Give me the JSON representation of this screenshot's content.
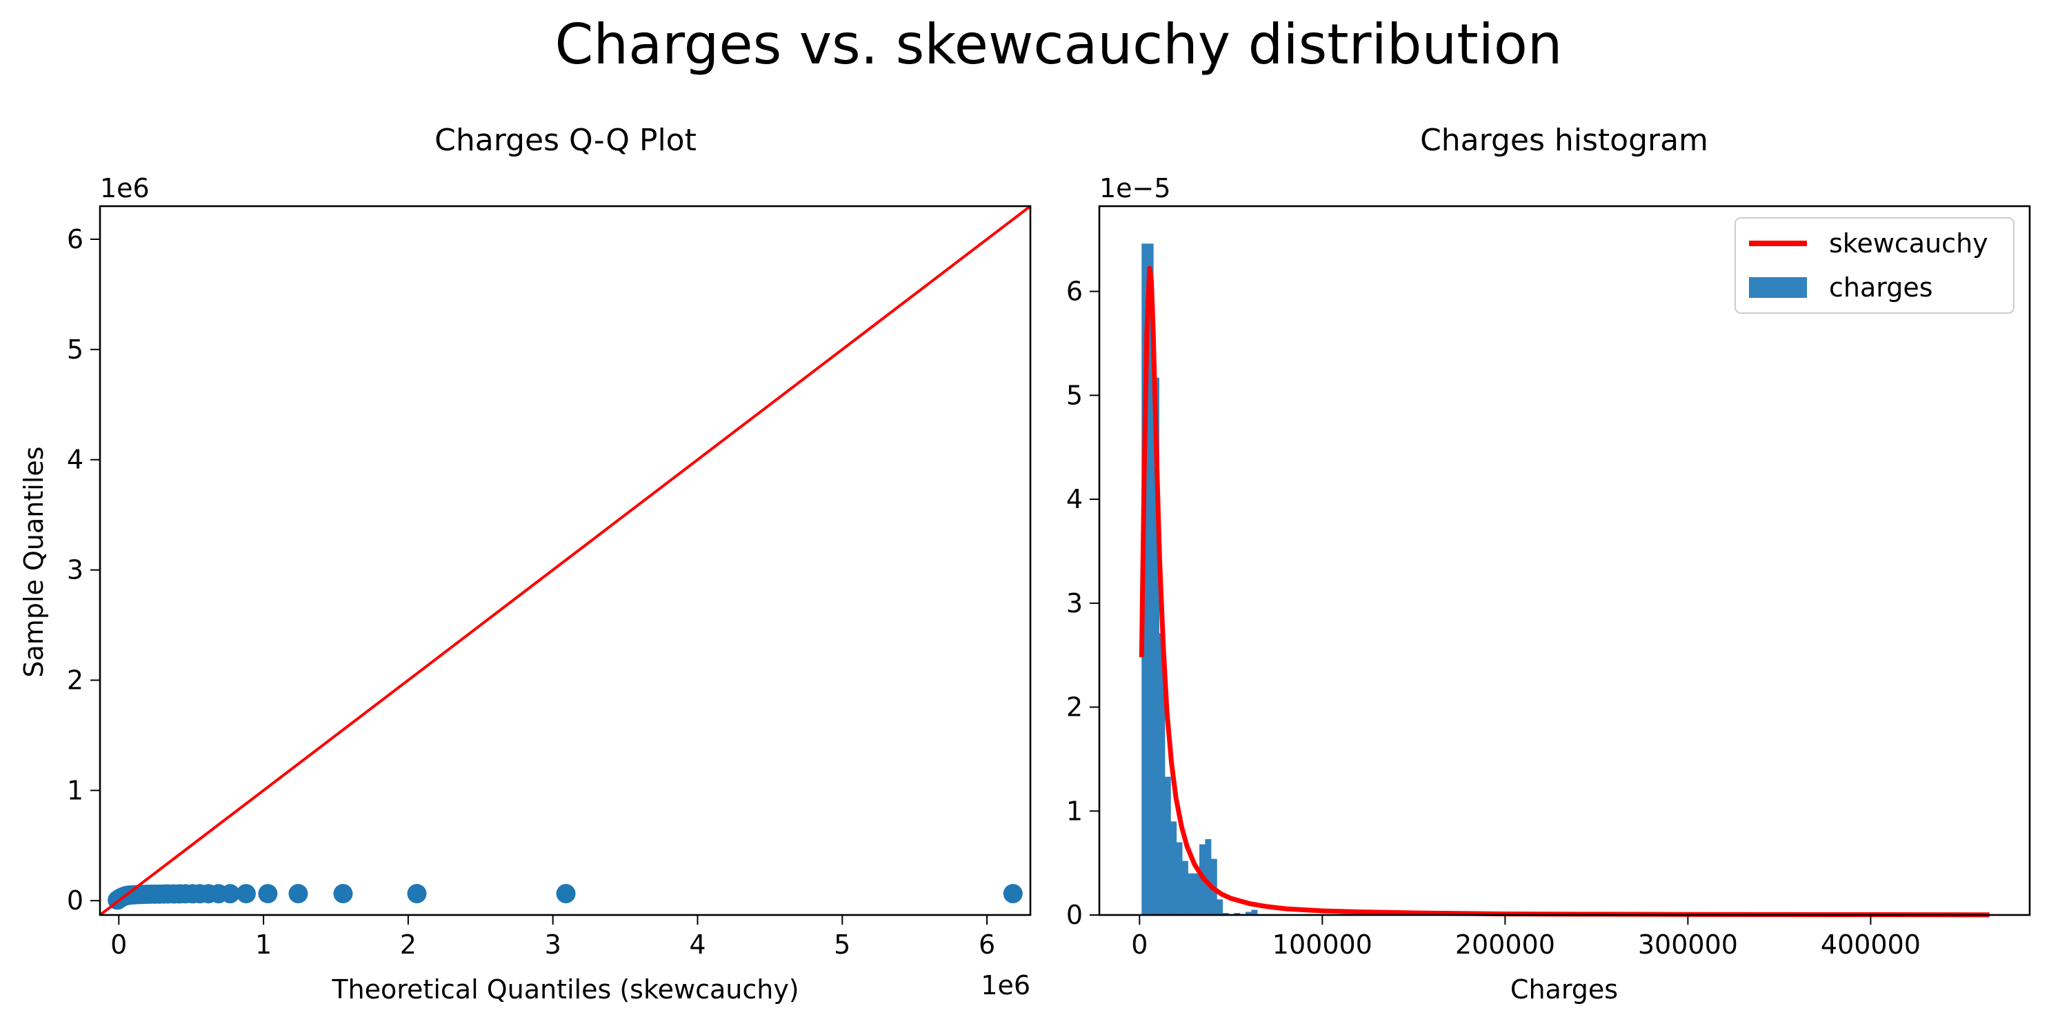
{
  "figure": {
    "title": "Charges vs. skewcauchy distribution"
  },
  "colors": {
    "scatter": "#1f77b4",
    "bars": "#3182bd",
    "fit_line": "#ff0000",
    "reference_line": "#ff0000"
  },
  "chart_data": [
    {
      "type": "scatter",
      "title": "Charges Q-Q Plot",
      "xlabel": "Theoretical Quantiles (skewcauchy)",
      "ylabel": "Sample Quantiles",
      "x_offset_label": "1e6",
      "y_offset_label": "1e6",
      "xlim": [
        -130000,
        6300000
      ],
      "ylim": [
        -130000,
        6300000
      ],
      "xticks": [
        0,
        1000000,
        2000000,
        3000000,
        4000000,
        5000000,
        6000000
      ],
      "xtick_labels": [
        "0",
        "1",
        "2",
        "3",
        "4",
        "5",
        "6"
      ],
      "yticks": [
        0,
        1000000,
        2000000,
        3000000,
        4000000,
        5000000,
        6000000
      ],
      "ytick_labels": [
        "0",
        "1",
        "2",
        "3",
        "4",
        "5",
        "6"
      ],
      "grid": false,
      "reference_line": {
        "x": [
          -130000,
          6300000
        ],
        "y": [
          -130000,
          6300000
        ]
      },
      "points": {
        "x": [
          -10000,
          0,
          5000,
          10000,
          20000,
          30000,
          40000,
          50000,
          60000,
          75000,
          90000,
          110000,
          130000,
          150000,
          170000,
          195000,
          220000,
          250000,
          280000,
          310000,
          340000,
          380000,
          420000,
          460000,
          510000,
          560000,
          620000,
          690000,
          770000,
          880000,
          1030000,
          1240000,
          1550000,
          2060000,
          3090000,
          6180000
        ],
        "y": [
          5000,
          13000,
          18000,
          24000,
          30000,
          36000,
          41000,
          45000,
          48000,
          50000,
          52000,
          53500,
          55000,
          56000,
          57000,
          58000,
          58500,
          59000,
          59500,
          60000,
          60500,
          61000,
          61500,
          62000,
          62000,
          62500,
          62500,
          63000,
          63000,
          63500,
          63500,
          63600,
          63700,
          63700,
          63770,
          63770
        ]
      }
    },
    {
      "type": "bar",
      "title": "Charges histogram",
      "xlabel": "Charges",
      "ylabel": "",
      "y_offset_label": "1e−5",
      "xlim": [
        -22000,
        487000
      ],
      "ylim": [
        0,
        6.82e-05
      ],
      "xticks": [
        0,
        100000,
        200000,
        300000,
        400000
      ],
      "xtick_labels": [
        "0",
        "100000",
        "200000",
        "300000",
        "400000"
      ],
      "yticks": [
        0,
        1e-05,
        2e-05,
        3e-05,
        4e-05,
        5e-05,
        6e-05
      ],
      "ytick_labels": [
        "0",
        "1",
        "2",
        "3",
        "4",
        "5",
        "6"
      ],
      "grid": false,
      "legend": {
        "position": "upper right",
        "entries": [
          "skewcauchy",
          "charges"
        ]
      },
      "histogram": {
        "name": "charges",
        "bin_width": 3160,
        "bin_starts": [
          1120,
          4280,
          7440,
          10600,
          13760,
          16920,
          20080,
          23240,
          26400,
          29560,
          32720,
          35880,
          39040,
          42200,
          45360,
          48520,
          51680,
          54840,
          58000,
          61160
        ],
        "density": [
          6.46e-05,
          6.46e-05,
          5.17e-05,
          2.71e-05,
          1.33e-05,
          9e-06,
          7e-06,
          5.2e-06,
          4e-06,
          4e-06,
          6.8e-06,
          7.3e-06,
          5.4e-06,
          1.5e-06,
          2e-07,
          1e-07,
          2e-07,
          1e-07,
          3e-07,
          5e-07
        ]
      },
      "fit_curve": {
        "name": "skewcauchy",
        "x": [
          1120,
          2500,
          4000,
          5500,
          6500,
          7500,
          9000,
          11000,
          13000,
          15000,
          17500,
          20000,
          23000,
          26000,
          30000,
          35000,
          40000,
          45000,
          50000,
          60000,
          70000,
          80000,
          100000,
          120000,
          150000,
          200000,
          250000,
          300000,
          350000,
          400000,
          465000
        ],
        "y": [
          2.48e-05,
          4.2e-05,
          5.6e-05,
          6.22e-05,
          6.1e-05,
          5.6e-05,
          4.6e-05,
          3.4e-05,
          2.58e-05,
          1.95e-05,
          1.46e-05,
          1.12e-05,
          8.5e-06,
          6.6e-06,
          4.9e-06,
          3.5e-06,
          2.6e-06,
          2e-06,
          1.6e-06,
          1.1e-06,
          8e-07,
          6e-07,
          4e-07,
          3e-07,
          2e-07,
          1e-07,
          7e-08,
          5e-08,
          4e-08,
          3e-08,
          2e-08
        ]
      }
    }
  ]
}
